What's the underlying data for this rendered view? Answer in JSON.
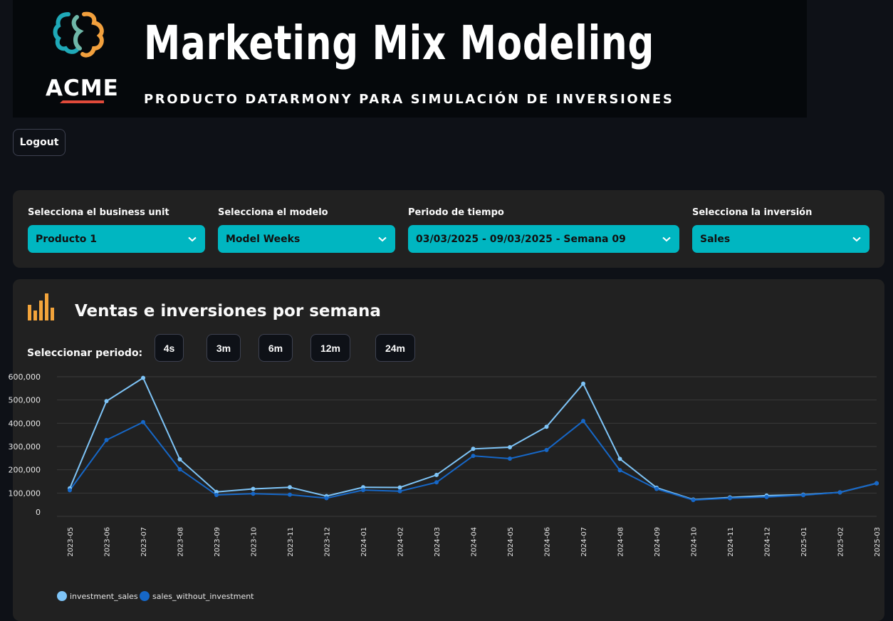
{
  "banner": {
    "title": "Marketing Mix Modeling",
    "subtitle": "PRODUCTO DATARMONY PARA SIMULACIÓN DE INVERSIONES",
    "brand": "ACME"
  },
  "logout_label": "Logout",
  "filters": [
    {
      "label": "Selecciona el business unit",
      "value": "Producto 1"
    },
    {
      "label": "Selecciona el modelo",
      "value": "Model Weeks"
    },
    {
      "label": "Periodo de tiempo",
      "value": "03/03/2025 - 09/03/2025 - Semana 09"
    },
    {
      "label": "Selecciona la inversión",
      "value": "Sales"
    }
  ],
  "chart_section": {
    "title": "Ventas e inversiones por semana",
    "period_label": "Seleccionar periodo:",
    "period_buttons": [
      "4s",
      "3m",
      "6m",
      "12m",
      "24m"
    ]
  },
  "colors": {
    "accent": "#00b6c1",
    "series_light": "#7ec4f7",
    "series_dark": "#1667c7",
    "icon": "#f3a43b"
  },
  "chart_data": {
    "type": "line",
    "categories": [
      "2023-05",
      "2023-06",
      "2023-07",
      "2023-08",
      "2023-09",
      "2023-10",
      "2023-11",
      "2023-12",
      "2024-01",
      "2024-02",
      "2024-03",
      "2024-04",
      "2024-05",
      "2024-06",
      "2024-07",
      "2024-08",
      "2024-09",
      "2024-10",
      "2024-11",
      "2024-12",
      "2025-01",
      "2025-02",
      "2025-03"
    ],
    "y_ticks": [
      "600,000",
      "500,000",
      "400,000",
      "300,000",
      "200,000",
      "100,000",
      "0"
    ],
    "ylim": [
      0,
      600000
    ],
    "grid": true,
    "legend_position": "bottom-left",
    "series": [
      {
        "name": "investment_sales",
        "color": "#7ec4f7",
        "values": [
          120000,
          495000,
          595000,
          245000,
          105000,
          118000,
          125000,
          87000,
          125000,
          124000,
          178000,
          290000,
          297000,
          385000,
          570000,
          247000,
          123000,
          72000,
          81000,
          89000,
          93000,
          103000,
          142000
        ]
      },
      {
        "name": "sales_without_investment",
        "color": "#1667c7",
        "values": [
          112000,
          328000,
          405000,
          202000,
          92000,
          97000,
          93000,
          78000,
          113000,
          108000,
          146000,
          260000,
          248000,
          285000,
          410000,
          198000,
          118000,
          70000,
          78000,
          83000,
          91000,
          103000,
          142000
        ]
      }
    ]
  }
}
